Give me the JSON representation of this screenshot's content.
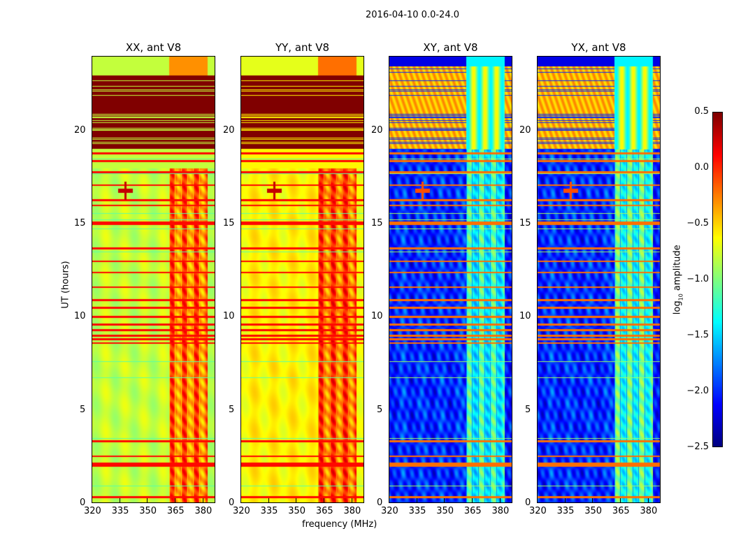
{
  "suptitle": "2016-04-10 0.0-24.0",
  "chart_data": {
    "type": "heatmap",
    "title": "2016-04-10 0.0-24.0",
    "xlabel": "frequency (MHz)",
    "ylabel": "UT (hours)",
    "xlim": [
      320,
      387
    ],
    "ylim": [
      0,
      24
    ],
    "xticks": [
      "320",
      "335",
      "350",
      "365",
      "380"
    ],
    "yticks": [
      "0",
      "5",
      "10",
      "15",
      "20"
    ],
    "colorbar": {
      "label": "log10 amplitude",
      "label_main": "log",
      "label_sub": "10",
      "label_rest": " amplitude",
      "range": [
        -2.5,
        0.5
      ],
      "ticks": [
        "0.5",
        "0.0",
        "−0.5",
        "−1.0",
        "−1.5",
        "−2.0",
        "−2.5"
      ],
      "colormap": "jet"
    },
    "panels": [
      {
        "title": "XX, ant V8",
        "background": -0.8,
        "band": -0.2,
        "saturated_hours": [
          19,
          23
        ],
        "saturated_value": 0.5,
        "late_value": -0.8
      },
      {
        "title": "YY, ant V8",
        "background": -0.6,
        "band": -0.15,
        "saturated_hours": [
          19,
          23
        ],
        "saturated_value": 0.5,
        "late_value": -0.7
      },
      {
        "title": "XY, ant V8",
        "background": -2.0,
        "band": -1.3,
        "saturated_hours": [
          19,
          23.5
        ],
        "saturated_value": -0.4,
        "late_value": -2.2
      },
      {
        "title": "YX, ant V8",
        "background": -2.0,
        "band": -1.2,
        "saturated_hours": [
          19,
          23.5
        ],
        "saturated_value": -0.4,
        "late_value": -2.2
      }
    ],
    "band_mhz": [
      362,
      383
    ],
    "source_spot": {
      "freq": 338,
      "hour": 16.8
    },
    "rfi_hours": [
      0.3,
      2.0,
      2.1,
      2.5,
      3.3,
      8.6,
      8.8,
      9.0,
      9.3,
      9.6,
      10.0,
      10.5,
      10.9,
      11.6,
      12.4,
      13.0,
      13.7,
      15.0,
      15.1,
      16.0,
      16.3,
      17.1,
      17.8,
      18.4,
      18.8
    ]
  }
}
